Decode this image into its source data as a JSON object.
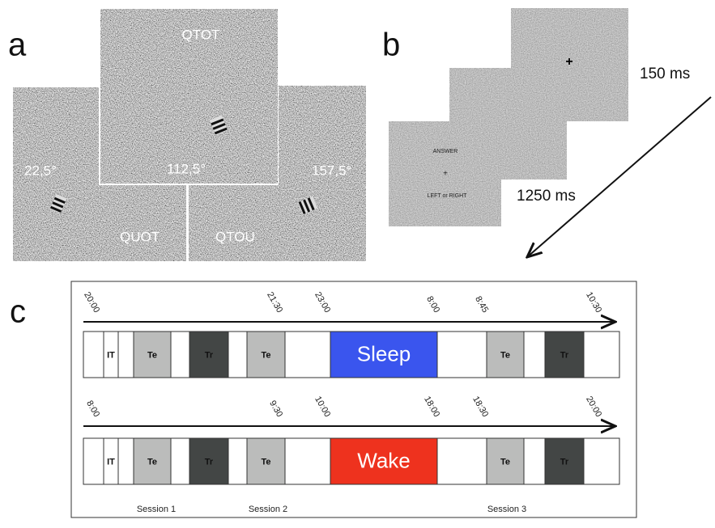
{
  "panels": {
    "a": {
      "label": "a",
      "images": [
        {
          "label": "QUOT",
          "angle": "22,5°"
        },
        {
          "label": "QTOU",
          "angle": "157,5°"
        },
        {
          "label": "QTOT",
          "angle": "112,5°"
        }
      ]
    },
    "b": {
      "label": "b",
      "durations": [
        "150 ms",
        "1250 ms"
      ],
      "screen_texts": [
        "ANSWER",
        "+",
        "LEFT or RIGHT"
      ]
    },
    "c": {
      "label": "c",
      "rows": [
        {
          "times": [
            "20:00",
            "21:30",
            "23:00",
            "8:00",
            "8:45",
            "10:30"
          ],
          "segments": [
            "IT",
            "Te",
            "Tr",
            "Te",
            "Sleep",
            "Te",
            "Tr"
          ]
        },
        {
          "times": [
            "8:00",
            "9:30",
            "10:00",
            "18:00",
            "18:30",
            "20:00"
          ],
          "segments": [
            "IT",
            "Te",
            "Tr",
            "Te",
            "Wake",
            "Te",
            "Tr"
          ]
        }
      ],
      "sessions": [
        "Session 1",
        "Session 2",
        "Session 3"
      ]
    }
  }
}
